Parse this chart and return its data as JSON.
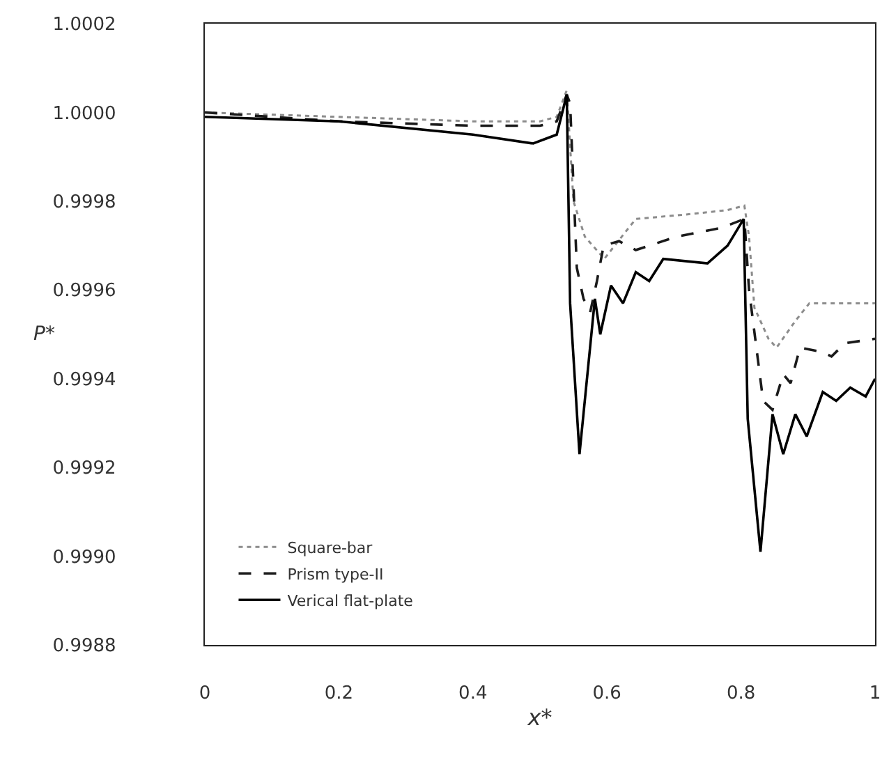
{
  "chart_data": {
    "type": "line",
    "xlabel": "x*",
    "ylabel": "P*",
    "xlim": [
      0,
      1
    ],
    "xticks": [
      0,
      0.2,
      0.4,
      0.6,
      0.8,
      1
    ],
    "ylim": [
      0.9988,
      1.0002
    ],
    "yticks": [
      {
        "value": 0.9988,
        "label": "0.9988"
      },
      {
        "value": 0.999,
        "label": "0.9990"
      },
      {
        "value": 0.9992,
        "label": "0.9992"
      },
      {
        "value": 0.9994,
        "label": "0.9994"
      },
      {
        "value": 0.9996,
        "label": "0.9996"
      },
      {
        "value": 0.9998,
        "label": "0.9998"
      },
      {
        "value": 1.0,
        "label": "1.0000"
      },
      {
        "value": 1.0002,
        "label": "1.0002"
      }
    ],
    "grid": false,
    "legend": "bottom left",
    "marker": "none",
    "series": [
      {
        "name": "Square-bar",
        "color": "#8c8c8c",
        "line_style": "dotted",
        "x": [
          0,
          0.2,
          0.4,
          0.5,
          0.525,
          0.54,
          0.55,
          0.567,
          0.596,
          0.622,
          0.643,
          0.718,
          0.78,
          0.805,
          0.812,
          0.82,
          0.841,
          0.853,
          0.881,
          0.902,
          0.955,
          1
        ],
        "values": [
          1.0,
          0.99999,
          0.99998,
          0.99998,
          0.99999,
          1.00005,
          0.9998,
          0.99972,
          0.99967,
          0.99972,
          0.99976,
          0.99977,
          0.99978,
          0.99979,
          0.99972,
          0.99956,
          0.99949,
          0.99947,
          0.99953,
          0.99957,
          0.99957,
          0.99957
        ]
      },
      {
        "name": "Prism type-II",
        "color": "#1a1a1a",
        "line_style": "dashed",
        "x": [
          0,
          0.2,
          0.4,
          0.5,
          0.525,
          0.54,
          0.545,
          0.555,
          0.565,
          0.575,
          0.585,
          0.595,
          0.618,
          0.643,
          0.704,
          0.771,
          0.805,
          0.812,
          0.833,
          0.847,
          0.863,
          0.874,
          0.888,
          0.922,
          0.935,
          0.955,
          1
        ],
        "values": [
          1.0,
          0.99998,
          0.99997,
          0.99997,
          0.99998,
          1.00004,
          1.00002,
          0.99965,
          0.99958,
          0.99955,
          0.99962,
          0.9997,
          0.99971,
          0.99969,
          0.99972,
          0.99974,
          0.99976,
          0.9996,
          0.99935,
          0.99933,
          0.99941,
          0.99939,
          0.99947,
          0.99946,
          0.99945,
          0.99948,
          0.99949
        ]
      },
      {
        "name": "Verical flat-plate",
        "color": "#000000",
        "line_style": "solid",
        "x": [
          0,
          0.2,
          0.4,
          0.49,
          0.525,
          0.54,
          0.545,
          0.559,
          0.582,
          0.59,
          0.606,
          0.624,
          0.643,
          0.663,
          0.684,
          0.75,
          0.78,
          0.804,
          0.81,
          0.829,
          0.847,
          0.863,
          0.881,
          0.898,
          0.922,
          0.942,
          0.963,
          0.986,
          1
        ],
        "values": [
          0.99999,
          0.99998,
          0.99995,
          0.99993,
          0.99995,
          1.00004,
          0.99957,
          0.99923,
          0.99958,
          0.9995,
          0.99961,
          0.99957,
          0.99964,
          0.99962,
          0.99967,
          0.99966,
          0.9997,
          0.99976,
          0.99931,
          0.99901,
          0.99932,
          0.99923,
          0.99932,
          0.99927,
          0.99937,
          0.99935,
          0.99938,
          0.99936,
          0.9994
        ]
      }
    ]
  }
}
